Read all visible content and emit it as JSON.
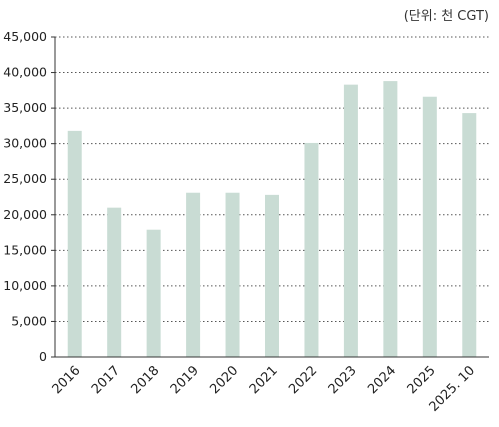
{
  "chart_data": {
    "type": "bar",
    "unit_label": "(단위: 천 CGT)",
    "categories": [
      "2016",
      "2017",
      "2018",
      "2019",
      "2020",
      "2021",
      "2022",
      "2023",
      "2024",
      "2025",
      "2025. 10"
    ],
    "values": [
      31800,
      21000,
      17900,
      23100,
      23100,
      22800,
      30100,
      38300,
      38800,
      36600,
      34300
    ],
    "ylim": [
      0,
      45000
    ],
    "yticks": [
      0,
      5000,
      10000,
      15000,
      20000,
      25000,
      30000,
      35000,
      40000,
      45000
    ],
    "ytick_labels": [
      "0",
      "5,000",
      "10,000",
      "15,000",
      "20,000",
      "25,000",
      "30,000",
      "35,000",
      "40,000",
      "45,000"
    ],
    "grid": true,
    "bar_color": "#c9dcd4",
    "grid_color": "#555555"
  }
}
